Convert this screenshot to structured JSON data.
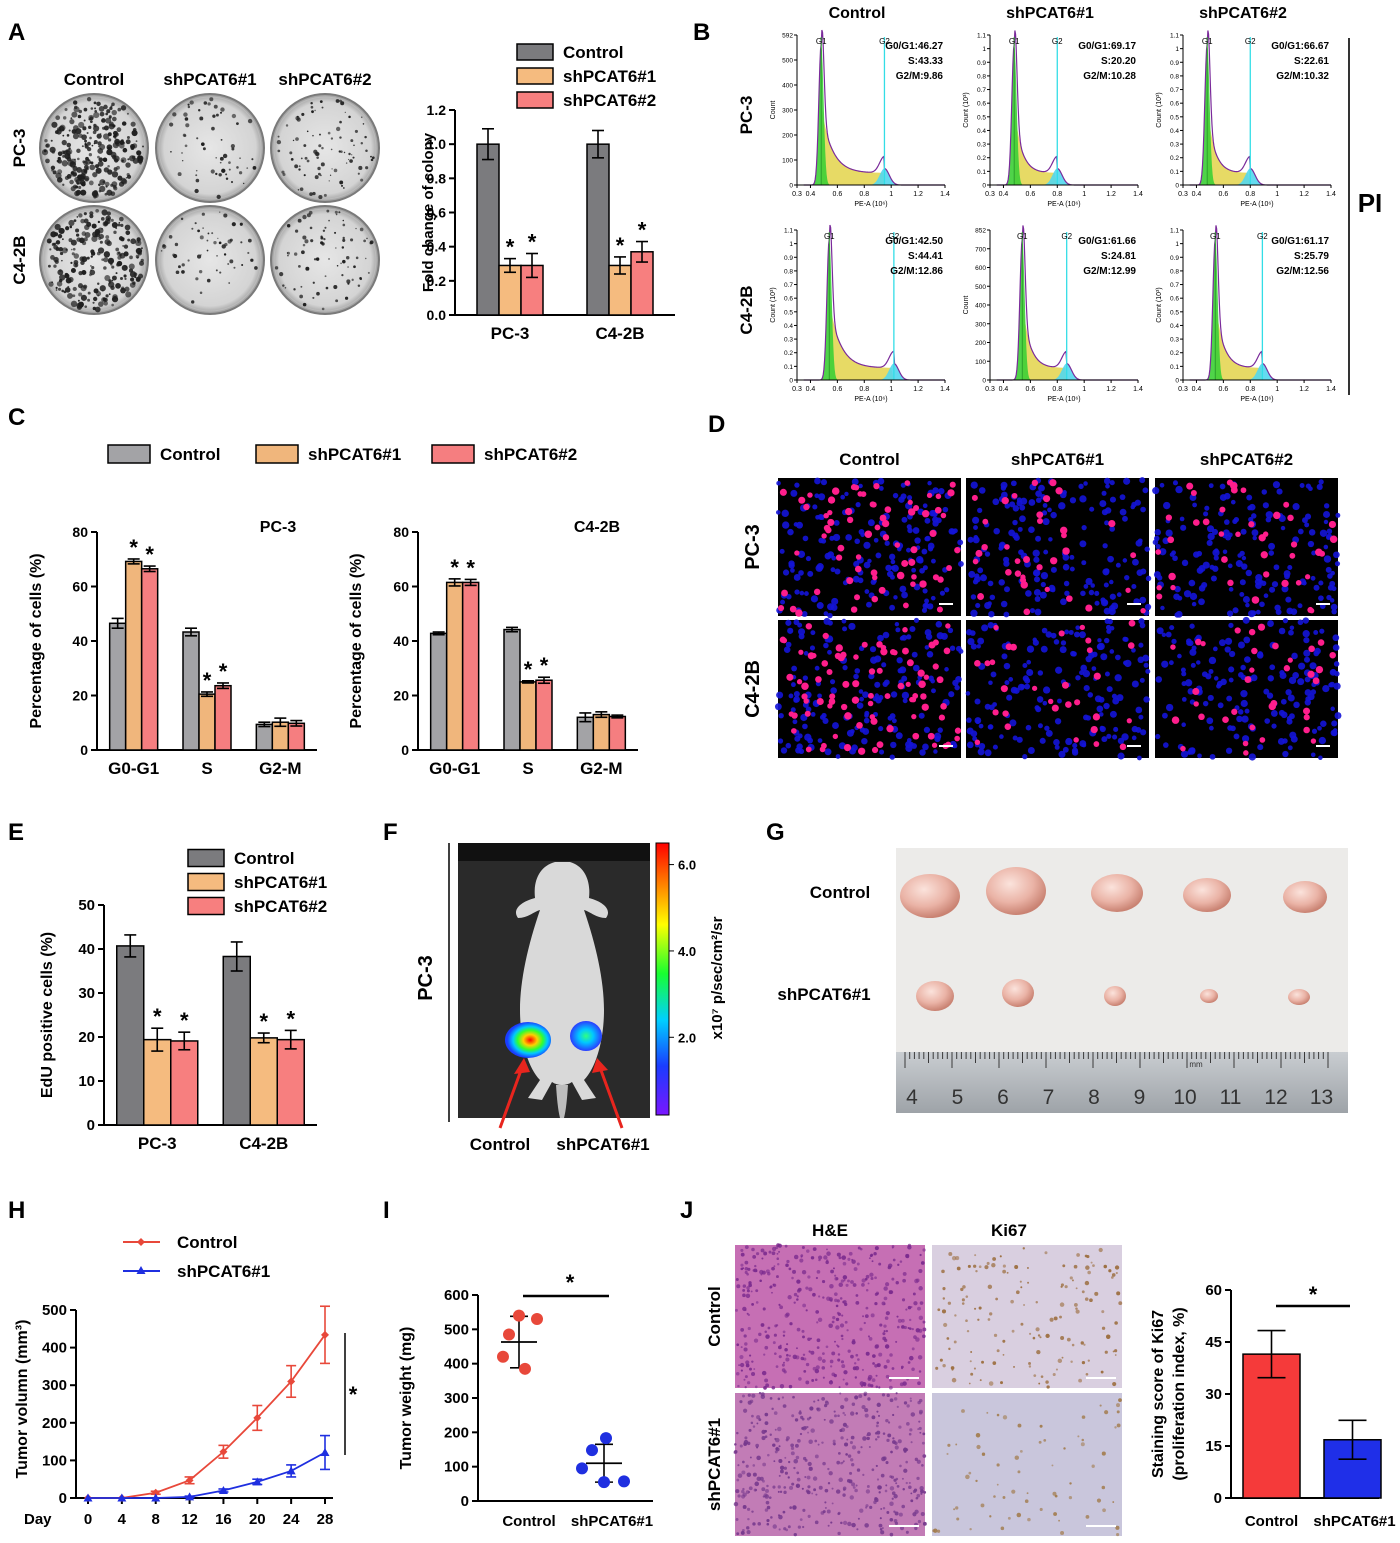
{
  "colors": {
    "control": "#7b7b7e",
    "sh1": "#f5bb7f",
    "sh2": "#f77f7f",
    "red": "#e8483a",
    "blue": "#1f2fe0",
    "ctrl_light": "#a3a3a6",
    "sh1_light": "#f0b67c",
    "sh2_light": "#f57e80"
  },
  "panels": {
    "A": {
      "letter": "A",
      "groups": [
        "Control",
        "shPCAT6#1",
        "shPCAT6#2"
      ],
      "rows": [
        "PC-3",
        "C4-2B"
      ],
      "chart": {
        "type": "bar",
        "categories": [
          "PC-3",
          "C4-2B"
        ],
        "series": [
          {
            "name": "Control",
            "values": [
              1.0,
              1.0
            ],
            "err": [
              0.09,
              0.08
            ]
          },
          {
            "name": "shPCAT6#1",
            "values": [
              0.29,
              0.29
            ],
            "err": [
              0.04,
              0.05
            ]
          },
          {
            "name": "shPCAT6#2",
            "values": [
              0.29,
              0.37
            ],
            "err": [
              0.07,
              0.06
            ]
          }
        ],
        "ylabel": "Fold change of colony",
        "ylim": [
          0,
          1.2
        ],
        "yticks": [
          "0.0",
          "0.2",
          "0.4",
          "0.6",
          "0.8",
          "1.0",
          "1.2"
        ],
        "sig": "*"
      }
    },
    "B": {
      "letter": "B",
      "cols": [
        "Control",
        "shPCAT6#1",
        "shPCAT6#2"
      ],
      "rows": [
        "PC-3",
        "C4-2B"
      ],
      "side_label": "PI",
      "xlabel": "PE-A (10⁶)",
      "ylabel_k": "Count (10³)",
      "ylabel": "Count",
      "xticks": [
        "0.3",
        "0.4",
        "0.6",
        "0.8",
        "1",
        "1.2",
        "1.4"
      ],
      "g1": "G1",
      "g2": "G2",
      "plots": [
        {
          "yticks": [
            "0",
            "100",
            "200",
            "300",
            "400",
            "500",
            "592"
          ],
          "stats": [
            "G0/G1:46.27",
            "S:43.33",
            "G2/M:9.86"
          ],
          "k": false,
          "g2pos": 0.95
        },
        {
          "yticks": [
            "0",
            "0.1",
            "0.2",
            "0.3",
            "0.4",
            "0.5",
            "0.6",
            "0.7",
            "0.8",
            "0.9",
            "1",
            "1.1"
          ],
          "stats": [
            "G0/G1:69.17",
            "S:20.20",
            "G2/M:10.28"
          ],
          "k": true,
          "g2pos": 0.8
        },
        {
          "yticks": [
            "0",
            "0.1",
            "0.2",
            "0.3",
            "0.4",
            "0.5",
            "0.6",
            "0.7",
            "0.8",
            "0.9",
            "1",
            "1.1"
          ],
          "stats": [
            "G0/G1:66.67",
            "S:22.61",
            "G2/M:10.32"
          ],
          "k": true,
          "g2pos": 0.8
        },
        {
          "yticks": [
            "0",
            "0.1",
            "0.2",
            "0.3",
            "0.4",
            "0.5",
            "0.6",
            "0.7",
            "0.8",
            "0.9",
            "1",
            "1.1"
          ],
          "stats": [
            "G0/G1:42.50",
            "S:44.41",
            "G2/M:12.86"
          ],
          "k": true,
          "g2pos": 1.02
        },
        {
          "yticks": [
            "0",
            "100",
            "200",
            "300",
            "400",
            "500",
            "600",
            "700",
            "852"
          ],
          "stats": [
            "G0/G1:61.66",
            "S:24.81",
            "G2/M:12.99"
          ],
          "k": false,
          "g2pos": 0.87
        },
        {
          "yticks": [
            "0",
            "0.1",
            "0.2",
            "0.3",
            "0.4",
            "0.5",
            "0.6",
            "0.7",
            "0.8",
            "0.9",
            "1",
            "1.1"
          ],
          "stats": [
            "G0/G1:61.17",
            "S:25.79",
            "G2/M:12.56"
          ],
          "k": true,
          "g2pos": 0.89
        }
      ]
    },
    "C": {
      "letter": "C",
      "legend": [
        "Control",
        "shPCAT6#1",
        "shPCAT6#2"
      ],
      "charts": [
        {
          "title": "PC-3",
          "categories": [
            "G0-G1",
            "S",
            "G2-M"
          ],
          "series": [
            {
              "name": "Control",
              "values": [
                46.5,
                43.3,
                9.4
              ],
              "err": [
                1.8,
                1.4,
                0.8
              ]
            },
            {
              "name": "shPCAT6#1",
              "values": [
                69.2,
                20.5,
                10.2
              ],
              "err": [
                0.9,
                0.8,
                1.5
              ]
            },
            {
              "name": "shPCAT6#2",
              "values": [
                66.5,
                23.6,
                9.8
              ],
              "err": [
                1.0,
                1.0,
                1.0
              ]
            }
          ],
          "ylabel": "Percentage of cells (%)",
          "ylim": [
            0,
            80
          ],
          "yticks": [
            "0",
            "20",
            "40",
            "60",
            "80"
          ],
          "sig": "*"
        },
        {
          "title": "C4-2B",
          "categories": [
            "G0-G1",
            "S",
            "G2-M"
          ],
          "series": [
            {
              "name": "Control",
              "values": [
                42.8,
                44.2,
                12.0
              ],
              "err": [
                0.5,
                0.8,
                1.6
              ]
            },
            {
              "name": "shPCAT6#1",
              "values": [
                61.5,
                25.0,
                13.0
              ],
              "err": [
                1.3,
                0.4,
                1.0
              ]
            },
            {
              "name": "shPCAT6#2",
              "values": [
                61.5,
                25.6,
                12.3
              ],
              "err": [
                1.1,
                1.1,
                0.5
              ]
            }
          ],
          "ylabel": "Percentage of cells (%)",
          "ylim": [
            0,
            80
          ],
          "yticks": [
            "0",
            "20",
            "40",
            "60",
            "80"
          ],
          "sig": "*"
        }
      ]
    },
    "D": {
      "letter": "D",
      "cols": [
        "Control",
        "shPCAT6#1",
        "shPCAT6#2"
      ],
      "rows": [
        "PC-3",
        "C4-2B"
      ]
    },
    "E": {
      "letter": "E",
      "chart": {
        "type": "bar",
        "categories": [
          "PC-3",
          "C4-2B"
        ],
        "series": [
          {
            "name": "Control",
            "values": [
              40.7,
              38.3
            ],
            "err": [
              2.5,
              3.3
            ]
          },
          {
            "name": "shPCAT6#1",
            "values": [
              19.4,
              19.8
            ],
            "err": [
              2.6,
              1.1
            ]
          },
          {
            "name": "shPCAT6#2",
            "values": [
              19.1,
              19.4
            ],
            "err": [
              2.0,
              2.1
            ]
          }
        ],
        "ylabel": "EdU positive cells (%)",
        "ylim": [
          0,
          50
        ],
        "yticks": [
          "0",
          "10",
          "20",
          "30",
          "40",
          "50"
        ],
        "sig": "*"
      }
    },
    "F": {
      "letter": "F",
      "side": "PC-3",
      "scale_label": "x10⁷ p/sec/cm²/sr",
      "scale_ticks": [
        "6.0",
        "4.0",
        "2.0"
      ],
      "arrows": [
        "Control",
        "shPCAT6#1"
      ]
    },
    "G": {
      "letter": "G",
      "rows": [
        "Control",
        "shPCAT6#1"
      ],
      "ruler": [
        "4",
        "5",
        "6",
        "7",
        "8",
        "9",
        "10",
        "11",
        "12",
        "13"
      ],
      "ruler_unit": "mm"
    },
    "H": {
      "letter": "H",
      "chart": {
        "type": "line",
        "x": [
          0,
          4,
          8,
          12,
          16,
          20,
          24,
          28
        ],
        "series": [
          {
            "name": "Control",
            "values": [
              0,
              0,
              14,
              47,
              123,
              213,
              310,
              434
            ],
            "err": [
              0,
              0,
              4,
              9,
              17,
              33,
              42,
              76
            ]
          },
          {
            "name": "shPCAT6#1",
            "values": [
              0,
              0,
              0,
              3,
              20,
              43,
              72,
              121
            ],
            "err": [
              0,
              0,
              0,
              2,
              4,
              7,
              16,
              45
            ]
          }
        ],
        "xlabel": "Day",
        "ylabel": "Tumor volumn (mm³)",
        "ylim": [
          0,
          500
        ],
        "yticks": [
          "0",
          "100",
          "200",
          "300",
          "400",
          "500"
        ],
        "xticks": [
          "0",
          "4",
          "8",
          "12",
          "16",
          "20",
          "24",
          "28"
        ],
        "sig": "*"
      }
    },
    "I": {
      "letter": "I",
      "chart": {
        "type": "scatter",
        "categories": [
          "Control",
          "shPCAT6#1"
        ],
        "points": [
          [
            540,
            530,
            485,
            420,
            385
          ],
          [
            183,
            148,
            95,
            57,
            55
          ]
        ],
        "mean": [
          463,
          110
        ],
        "sd": [
          75,
          55
        ],
        "ylabel": "Tumor weight (mg)",
        "ylim": [
          0,
          600
        ],
        "yticks": [
          "0",
          "100",
          "200",
          "300",
          "400",
          "500",
          "600"
        ],
        "sig": "*"
      }
    },
    "J": {
      "letter": "J",
      "cols": [
        "H&E",
        "Ki67"
      ],
      "rows": [
        "Control",
        "shPCAT6#1"
      ],
      "chart": {
        "type": "bar",
        "categories": [
          "Control",
          "shPCAT6#1"
        ],
        "values": [
          41.5,
          16.8
        ],
        "err": [
          6.8,
          5.6
        ],
        "ylabel": "Staining score of Ki67",
        "ylabel2": "(proliferation index, %)",
        "ylim": [
          0,
          60
        ],
        "yticks": [
          "0",
          "15",
          "30",
          "45",
          "60"
        ],
        "sig": "*"
      }
    }
  }
}
